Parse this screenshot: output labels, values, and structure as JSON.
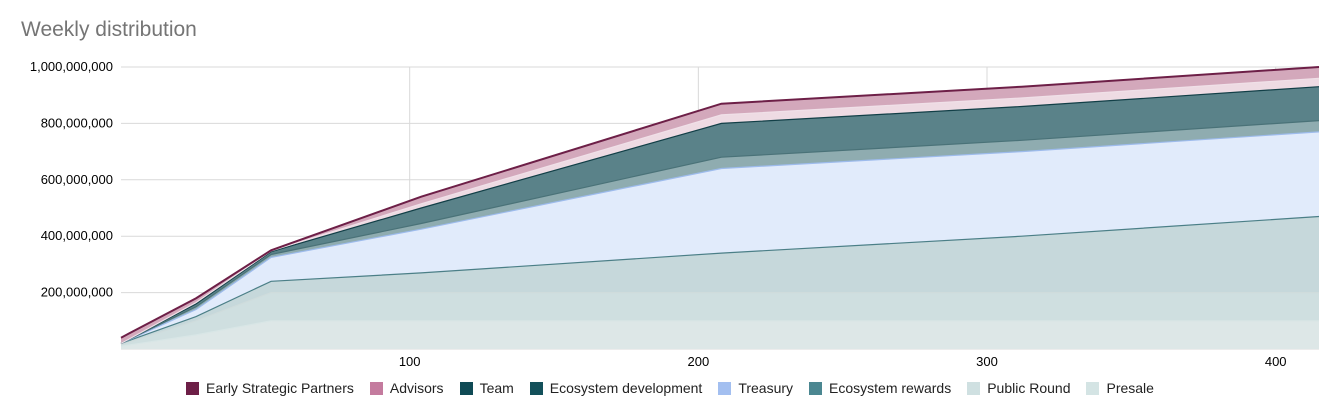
{
  "chart_data": {
    "type": "area",
    "stacked": true,
    "title": "Weekly distribution",
    "xlabel": "",
    "ylabel": "",
    "xlim": [
      0,
      415
    ],
    "ylim": [
      0,
      1000000000
    ],
    "x_ticks": [
      100,
      200,
      300,
      400
    ],
    "x_tick_labels": [
      "100",
      "200",
      "300",
      "400"
    ],
    "y_ticks": [
      200000000,
      400000000,
      600000000,
      800000000,
      1000000000
    ],
    "y_tick_labels": [
      "200,000,000",
      "400,000,000",
      "600,000,000",
      "800,000,000",
      "1,000,000,000"
    ],
    "grid": true,
    "legend_position": "bottom",
    "x": [
      0,
      26,
      52,
      104,
      208,
      312,
      415
    ],
    "series": [
      {
        "name": "Presale",
        "color": "#dde7e7",
        "values": [
          10000000,
          50000000,
          100000000,
          100000000,
          100000000,
          100000000,
          100000000
        ]
      },
      {
        "name": "Public Round",
        "color": "#cfdfe0",
        "values": [
          5000000,
          50000000,
          100000000,
          100000000,
          100000000,
          100000000,
          100000000
        ]
      },
      {
        "name": "Ecosystem rewards",
        "color": "#c6d8db",
        "values": [
          5000000,
          15000000,
          40000000,
          70000000,
          140000000,
          200000000,
          270000000
        ]
      },
      {
        "name": "Treasury",
        "color": "#e1ebfb",
        "values": [
          0,
          25000000,
          85000000,
          155000000,
          300000000,
          300000000,
          300000000
        ]
      },
      {
        "name": "Ecosystem development",
        "color": "#8facb0",
        "values": [
          0,
          10000000,
          10000000,
          20000000,
          40000000,
          40000000,
          40000000
        ]
      },
      {
        "name": "Team",
        "color": "#5a8289",
        "values": [
          0,
          10000000,
          10000000,
          55000000,
          120000000,
          120000000,
          120000000
        ]
      },
      {
        "name": "Advisors",
        "color": "#eedbe3",
        "values": [
          0,
          5000000,
          3000000,
          15000000,
          30000000,
          30000000,
          30000000
        ]
      },
      {
        "name": "Early Strategic Partners",
        "color": "#d3a8bb",
        "values": [
          20000000,
          15000000,
          2000000,
          25000000,
          40000000,
          40000000,
          40000000
        ]
      }
    ],
    "legend": [
      {
        "name": "Early Strategic Partners",
        "color": "#6d1f47"
      },
      {
        "name": "Advisors",
        "color": "#c47b9e"
      },
      {
        "name": "Team",
        "color": "#0f4a55"
      },
      {
        "name": "Ecosystem development",
        "color": "#13505a"
      },
      {
        "name": "Treasury",
        "color": "#a3bff0"
      },
      {
        "name": "Ecosystem rewards",
        "color": "#4b8791"
      },
      {
        "name": "Public Round",
        "color": "#cfe0e1"
      },
      {
        "name": "Presale",
        "color": "#d4e4e4"
      }
    ],
    "line_colors": [
      "#d8e6e6",
      "#cfdcdc",
      "#4b7f87",
      "#9dbbec",
      "#4a7278",
      "#123f47",
      "#f0e0e8",
      "#6d1f47"
    ]
  }
}
